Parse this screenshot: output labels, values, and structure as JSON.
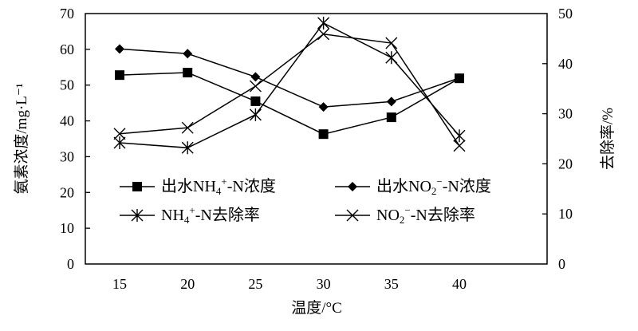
{
  "chart_data": {
    "type": "line",
    "title": "",
    "xlabel": "温度/°C",
    "ylabel_left": "氨素浓度/mg·L⁻¹",
    "ylabel_right": "去除率/%",
    "categories": [
      "15",
      "20",
      "25",
      "30",
      "35",
      "40"
    ],
    "ylim_left": [
      0,
      70
    ],
    "yticks_left": [
      "0",
      "10",
      "20",
      "30",
      "40",
      "50",
      "60",
      "70"
    ],
    "ylim_right": [
      0,
      50
    ],
    "yticks_right": [
      "0",
      "10",
      "20",
      "30",
      "40",
      "50"
    ],
    "grid": false,
    "legend_placement": "center",
    "series": [
      {
        "name": "出水NH4+-N浓度",
        "axis": "left",
        "marker": "square",
        "values": [
          52.8,
          53.5,
          45.5,
          36.3,
          41.0,
          51.9
        ]
      },
      {
        "name": "出水NO2−-N浓度",
        "axis": "left",
        "marker": "diamond",
        "values": [
          60.1,
          58.8,
          52.3,
          43.9,
          45.4,
          52.0
        ]
      },
      {
        "name": "NH4+-N去除率",
        "axis": "right",
        "marker": "asterisk",
        "values": [
          24.2,
          23.2,
          29.8,
          48.1,
          41.2,
          25.6
        ]
      },
      {
        "name": "NO2−-N去除率",
        "axis": "right",
        "marker": "cross",
        "values": [
          26.0,
          27.2,
          35.5,
          45.9,
          44.1,
          23.6
        ]
      }
    ]
  }
}
